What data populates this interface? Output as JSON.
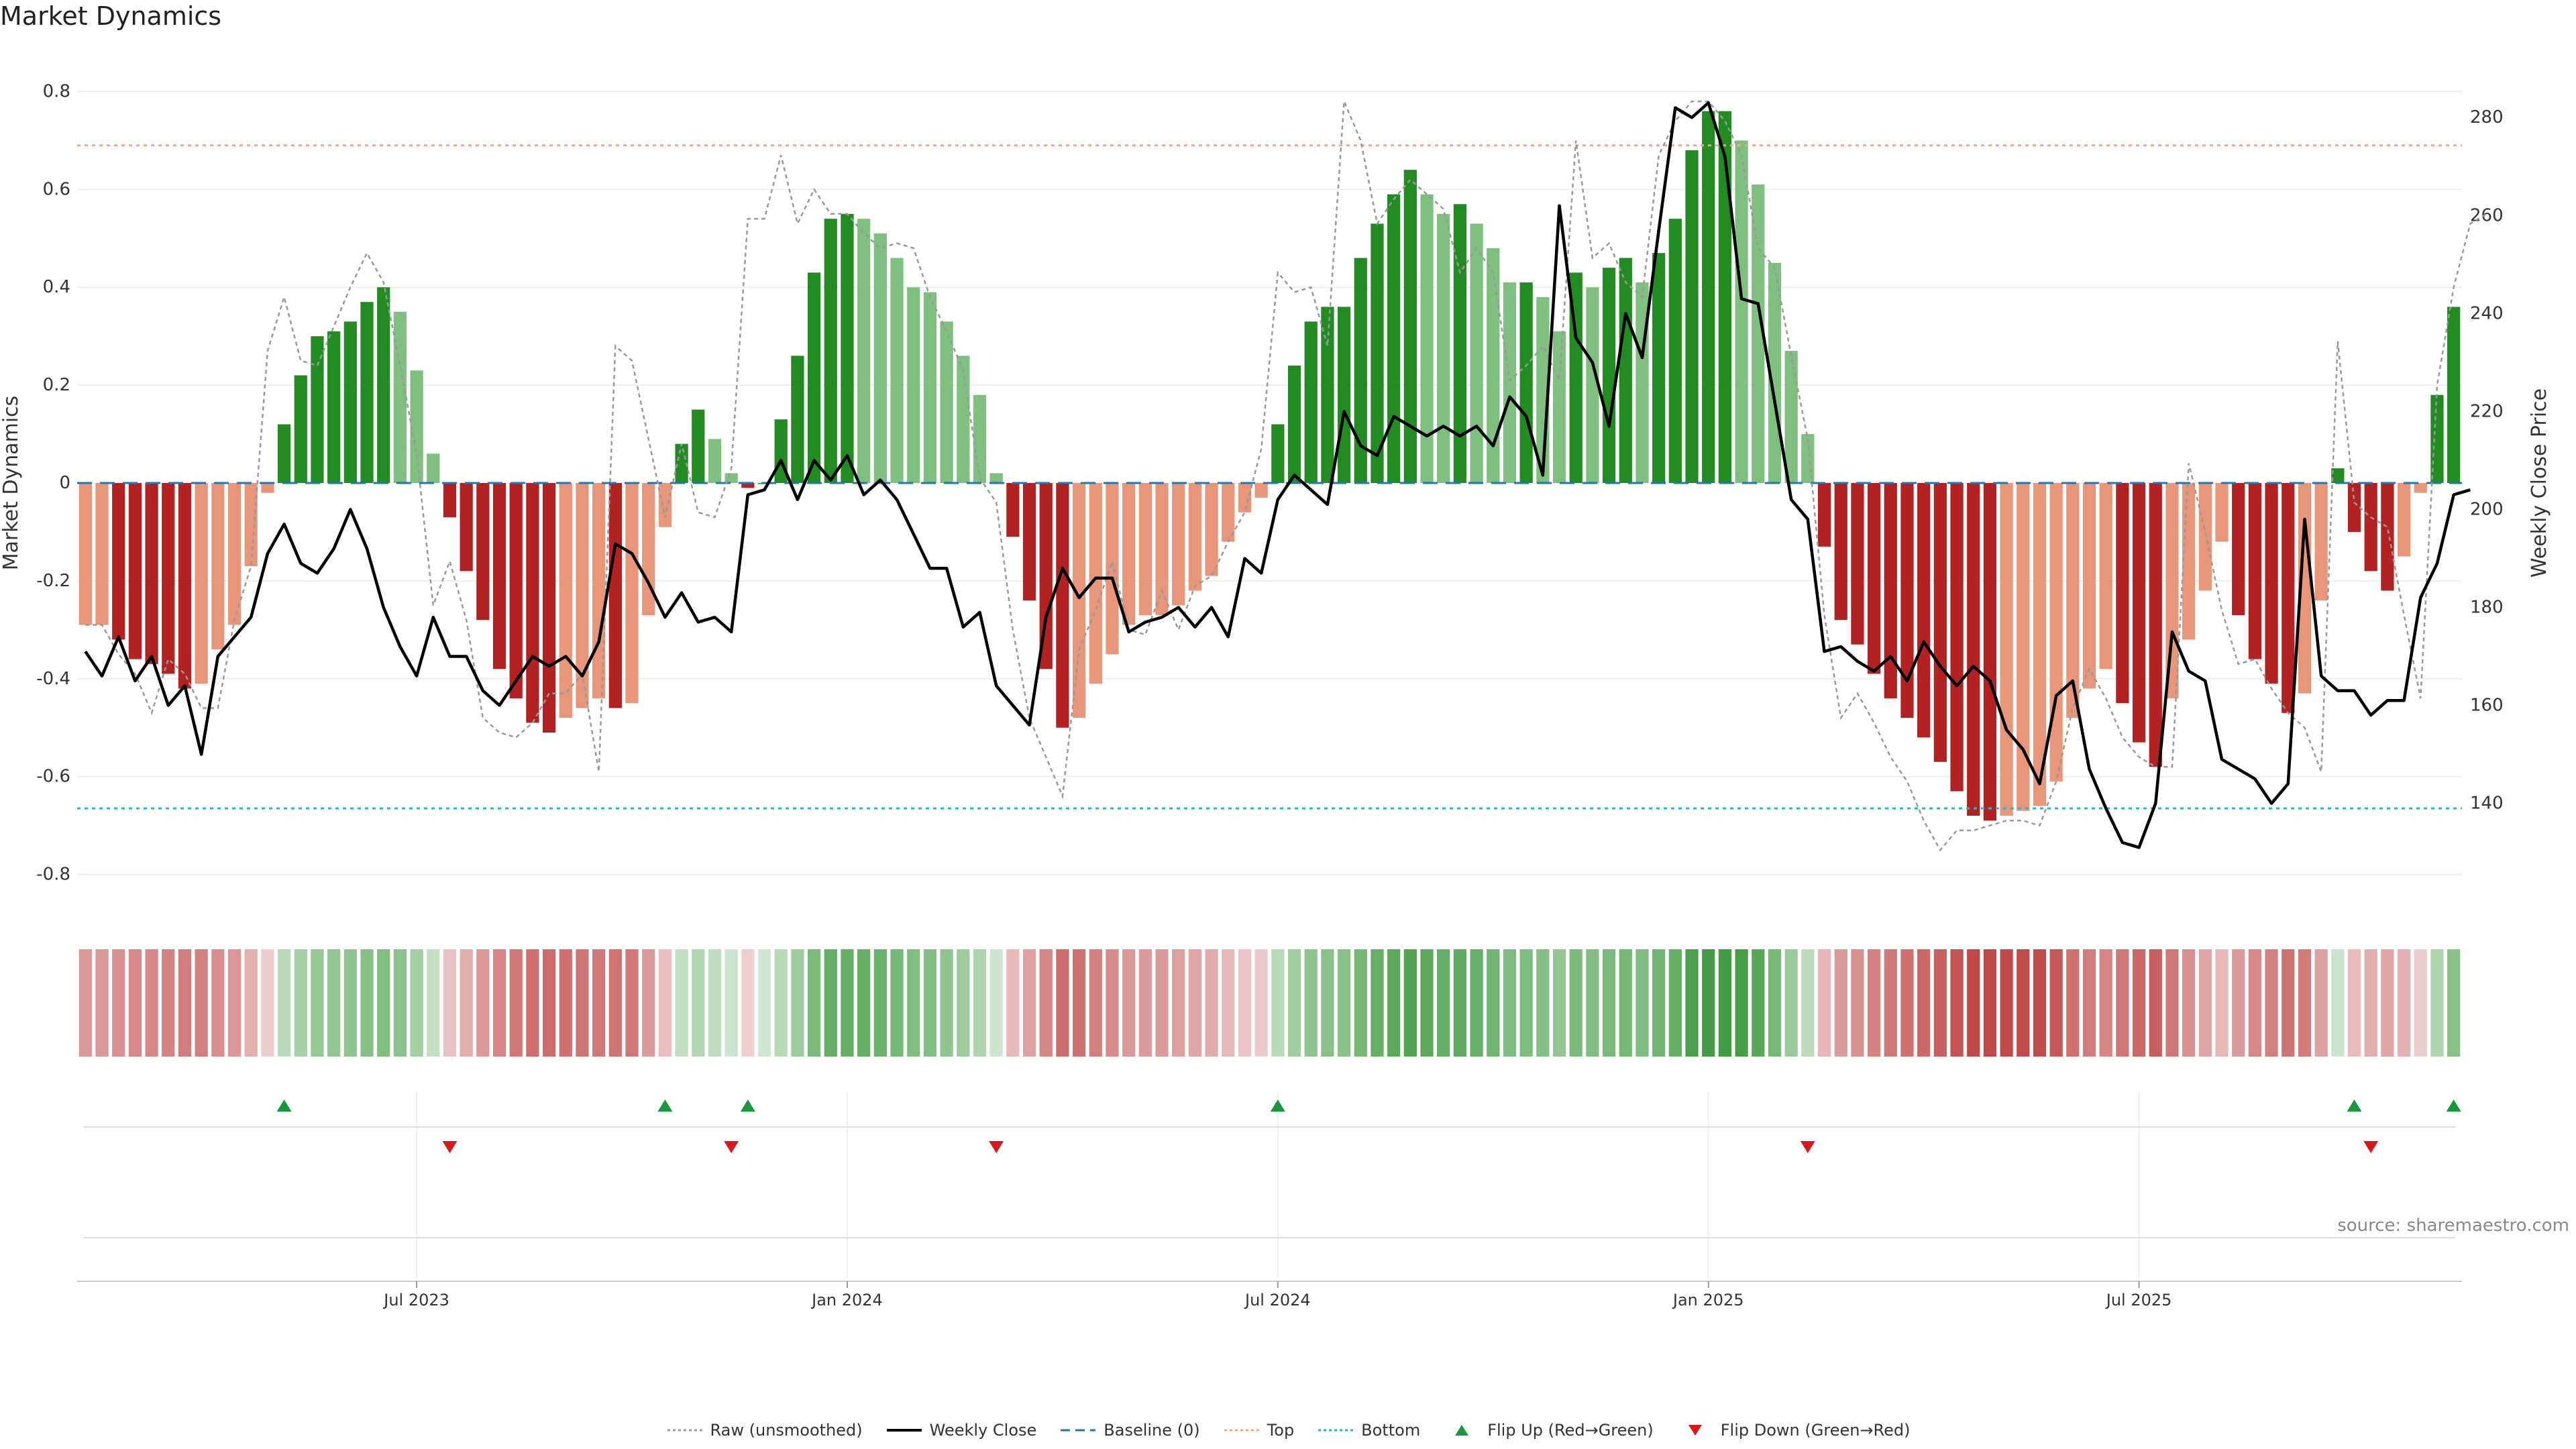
{
  "title": "Market Dynamics",
  "source": "source: sharemaestro.com",
  "chart_data": {
    "type": "bar",
    "left_axis": {
      "label": "Market Dynamics",
      "range": [
        -0.85,
        0.85
      ],
      "ticks": [
        -0.8,
        -0.6,
        -0.4,
        -0.2,
        0,
        0.2,
        0.4,
        0.6,
        0.8
      ]
    },
    "right_axis": {
      "label": "Weekly Close Price",
      "range": [
        120.5,
        290.3
      ],
      "ticks": [
        140,
        160,
        180,
        200,
        220,
        240,
        260,
        280
      ]
    },
    "x_ticks": [
      "Jul 2023",
      "Jan 2024",
      "Jul 2024",
      "Jan 2025",
      "Jul 2025"
    ],
    "x_tick_index": [
      20,
      46,
      72,
      98,
      124
    ],
    "reference_lines": {
      "baseline": 0,
      "top": 0.69,
      "bottom": -0.665
    },
    "colors": {
      "red_strong": "#b22222",
      "red_light": "#e8967a",
      "green_strong": "#228b22",
      "green_light": "#7fbf7f",
      "price": "#000000",
      "raw": "#999999",
      "baseline": "#1f77b4",
      "top": "#f4a582",
      "bottom": "#17becf",
      "flip_up": "#1a9641",
      "flip_down": "#d7191c"
    },
    "bars": [
      -0.29,
      -0.29,
      -0.32,
      -0.36,
      -0.37,
      -0.39,
      -0.42,
      -0.41,
      -0.34,
      -0.29,
      -0.17,
      -0.02,
      0.12,
      0.22,
      0.3,
      0.31,
      0.33,
      0.37,
      0.4,
      0.35,
      0.23,
      0.06,
      -0.07,
      -0.18,
      -0.28,
      -0.38,
      -0.44,
      -0.49,
      -0.51,
      -0.48,
      -0.46,
      -0.44,
      -0.46,
      -0.45,
      -0.27,
      -0.09,
      0.08,
      0.15,
      0.09,
      0.02,
      -0.01,
      0.0,
      0.13,
      0.26,
      0.43,
      0.54,
      0.55,
      0.54,
      0.51,
      0.46,
      0.4,
      0.39,
      0.33,
      0.26,
      0.18,
      0.02,
      -0.11,
      -0.24,
      -0.38,
      -0.5,
      -0.48,
      -0.41,
      -0.35,
      -0.29,
      -0.27,
      -0.27,
      -0.25,
      -0.22,
      -0.19,
      -0.12,
      -0.06,
      -0.03,
      0.12,
      0.24,
      0.33,
      0.36,
      0.36,
      0.46,
      0.53,
      0.59,
      0.64,
      0.59,
      0.55,
      0.57,
      0.53,
      0.48,
      0.41,
      0.41,
      0.38,
      0.31,
      0.43,
      0.4,
      0.44,
      0.46,
      0.41,
      0.47,
      0.54,
      0.68,
      0.76,
      0.76,
      0.7,
      0.61,
      0.45,
      0.27,
      0.1,
      -0.13,
      -0.28,
      -0.33,
      -0.39,
      -0.44,
      -0.48,
      -0.52,
      -0.57,
      -0.63,
      -0.68,
      -0.69,
      -0.68,
      -0.67,
      -0.66,
      -0.61,
      -0.48,
      -0.42,
      -0.38,
      -0.45,
      -0.53,
      -0.58,
      -0.44,
      -0.32,
      -0.22,
      -0.12,
      -0.27,
      -0.36,
      -0.41,
      -0.47,
      -0.43,
      -0.24,
      0.03,
      -0.1,
      -0.18,
      -0.22,
      -0.15,
      -0.02,
      0.18,
      0.36
    ],
    "weekly_close": [
      171,
      166,
      174,
      165,
      170,
      160,
      164,
      150,
      170,
      174,
      178,
      191,
      197,
      189,
      187,
      192,
      200,
      192,
      180,
      172,
      166,
      178,
      170,
      170,
      163,
      160,
      165,
      170,
      168,
      170,
      166,
      173,
      193,
      191,
      185,
      178,
      183,
      177,
      178,
      175,
      203,
      204,
      210,
      202,
      210,
      206,
      211,
      203,
      206,
      202,
      195,
      188,
      188,
      176,
      179,
      164,
      160,
      156,
      178,
      188,
      182,
      186,
      186,
      175,
      177,
      178,
      180,
      176,
      180,
      174,
      190,
      187,
      202,
      207,
      204,
      201,
      220,
      213,
      211,
      219,
      217,
      215,
      217,
      215,
      217,
      213,
      223,
      219,
      207,
      262,
      235,
      230,
      217,
      240,
      231,
      257,
      282,
      280,
      283,
      272,
      243,
      242,
      222,
      202,
      198,
      171,
      172,
      169,
      167,
      170,
      165,
      173,
      168,
      164,
      168,
      165,
      155,
      151,
      144,
      162,
      165,
      147,
      139,
      132,
      131,
      140,
      175,
      167,
      165,
      149,
      147,
      145,
      140,
      144,
      198,
      166,
      163,
      163,
      158,
      161,
      161,
      182,
      189,
      203,
      204
    ],
    "raw": [
      -0.29,
      -0.29,
      -0.35,
      -0.39,
      -0.47,
      -0.36,
      -0.39,
      -0.46,
      -0.46,
      -0.28,
      -0.17,
      0.27,
      0.38,
      0.25,
      0.24,
      0.32,
      0.4,
      0.47,
      0.41,
      0.24,
      0.06,
      -0.25,
      -0.16,
      -0.28,
      -0.48,
      -0.51,
      -0.52,
      -0.49,
      -0.43,
      -0.43,
      -0.39,
      -0.59,
      0.28,
      0.25,
      0.09,
      -0.07,
      0.08,
      -0.06,
      -0.07,
      0.03,
      0.54,
      0.54,
      0.67,
      0.53,
      0.6,
      0.55,
      0.55,
      0.51,
      0.48,
      0.49,
      0.48,
      0.38,
      0.31,
      0.23,
      0.01,
      -0.04,
      -0.3,
      -0.48,
      -0.56,
      -0.64,
      -0.34,
      -0.26,
      -0.16,
      -0.3,
      -0.31,
      -0.22,
      -0.3,
      -0.21,
      -0.19,
      -0.12,
      -0.06,
      0.07,
      0.43,
      0.39,
      0.4,
      0.28,
      0.78,
      0.7,
      0.53,
      0.58,
      0.62,
      0.59,
      0.56,
      0.43,
      0.48,
      0.43,
      0.21,
      0.24,
      0.28,
      0.21,
      0.7,
      0.46,
      0.49,
      0.41,
      0.38,
      0.67,
      0.74,
      0.78,
      0.78,
      0.74,
      0.67,
      0.48,
      0.44,
      0.26,
      0.09,
      -0.27,
      -0.48,
      -0.43,
      -0.49,
      -0.56,
      -0.61,
      -0.69,
      -0.75,
      -0.71,
      -0.71,
      -0.7,
      -0.69,
      -0.69,
      -0.7,
      -0.61,
      -0.46,
      -0.38,
      -0.44,
      -0.52,
      -0.56,
      -0.58,
      -0.58,
      0.04,
      -0.1,
      -0.26,
      -0.37,
      -0.36,
      -0.42,
      -0.47,
      -0.5,
      -0.59,
      0.29,
      -0.04,
      -0.07,
      -0.09,
      -0.27,
      -0.44,
      0.2,
      0.4,
      0.53,
      0.55
    ],
    "flip_up": [
      12,
      35,
      40,
      72,
      137,
      143
    ],
    "flip_down": [
      22,
      39,
      55,
      104,
      138
    ],
    "legend": [
      {
        "label": "Raw (unsmoothed)",
        "kind": "dotted",
        "color": "#999999"
      },
      {
        "label": "Weekly Close",
        "kind": "solid",
        "color": "#000000"
      },
      {
        "label": "Baseline (0)",
        "kind": "dashed",
        "color": "#1f77b4"
      },
      {
        "label": "Top",
        "kind": "dotted",
        "color": "#f4a582"
      },
      {
        "label": "Bottom",
        "kind": "dotted",
        "color": "#17becf"
      },
      {
        "label": "Flip Up (Red→Green)",
        "kind": "tri-up",
        "color": "#1a9641"
      },
      {
        "label": "Flip Down (Green→Red)",
        "kind": "tri-down",
        "color": "#d7191c"
      }
    ]
  }
}
